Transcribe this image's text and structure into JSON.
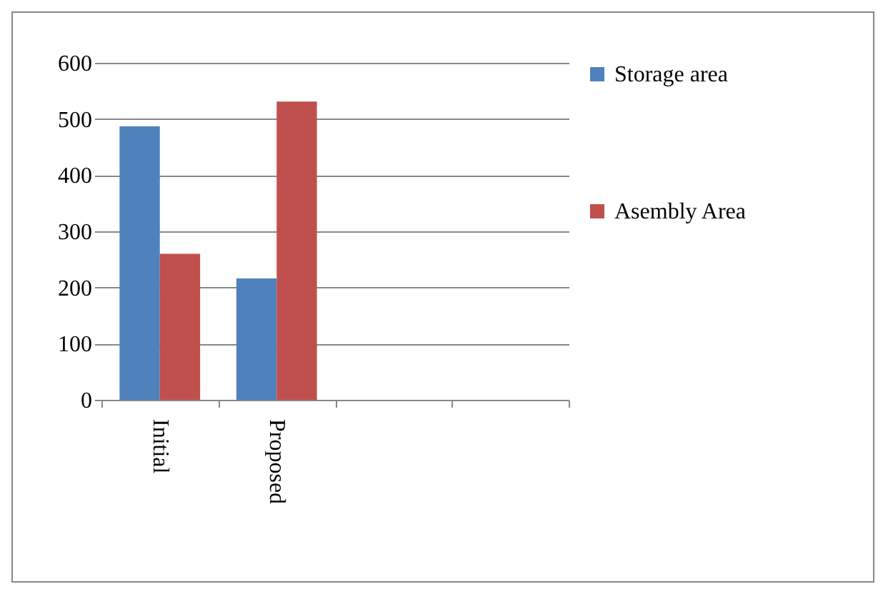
{
  "chart_data": {
    "type": "bar",
    "categories": [
      "Initial",
      "Proposed",
      null,
      null
    ],
    "series": [
      {
        "name": "Storage area",
        "color": "#4f81bd",
        "values": [
          487,
          216,
          null,
          null
        ]
      },
      {
        "name": "Asembly Area",
        "color": "#c0504d",
        "values": [
          260,
          531,
          null,
          null
        ]
      }
    ],
    "ylim": [
      0,
      600
    ],
    "yticks": [
      0,
      100,
      200,
      300,
      400,
      500,
      600
    ],
    "grid": "y",
    "legend": "right"
  }
}
